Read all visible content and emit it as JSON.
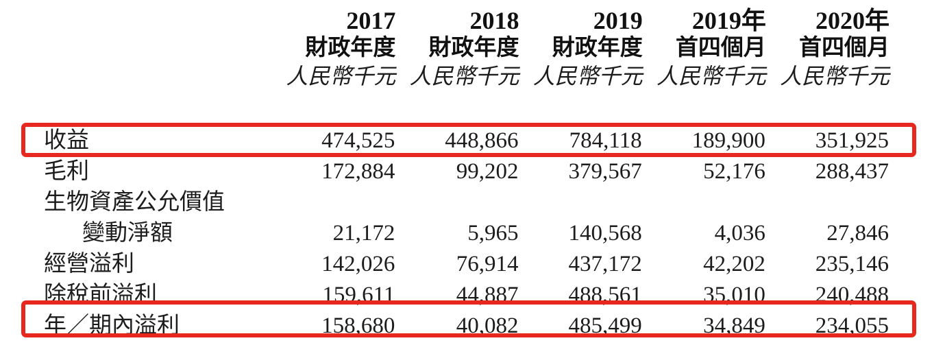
{
  "table": {
    "columns": [
      {
        "year": "2017",
        "period": "財政年度",
        "unit": "人民幣千元"
      },
      {
        "year": "2018",
        "period": "財政年度",
        "unit": "人民幣千元"
      },
      {
        "year": "2019",
        "period": "財政年度",
        "unit": "人民幣千元"
      },
      {
        "year": "2019年",
        "period": "首四個月",
        "unit": "人民幣千元"
      },
      {
        "year": "2020年",
        "period": "首四個月",
        "unit": "人民幣千元"
      }
    ],
    "rows": [
      {
        "label": "收益",
        "indent": false,
        "highlighted": true,
        "values": [
          "474,525",
          "448,866",
          "784,118",
          "189,900",
          "351,925"
        ]
      },
      {
        "label": "毛利",
        "indent": false,
        "highlighted": false,
        "values": [
          "172,884",
          "99,202",
          "379,567",
          "52,176",
          "288,437"
        ]
      },
      {
        "label": "生物資產公允價值",
        "indent": false,
        "highlighted": false,
        "values": [
          "",
          "",
          "",
          "",
          ""
        ]
      },
      {
        "label": "變動淨額",
        "indent": true,
        "highlighted": false,
        "values": [
          "21,172",
          "5,965",
          "140,568",
          "4,036",
          "27,846"
        ]
      },
      {
        "label": "經營溢利",
        "indent": false,
        "highlighted": false,
        "values": [
          "142,026",
          "76,914",
          "437,172",
          "42,202",
          "235,146"
        ]
      },
      {
        "label": "除稅前溢利",
        "indent": false,
        "highlighted": false,
        "values": [
          "159,611",
          "44,887",
          "488,561",
          "35,010",
          "240,488"
        ]
      },
      {
        "label": "年／期內溢利",
        "indent": false,
        "highlighted": true,
        "values": [
          "158,680",
          "40,082",
          "485,499",
          "34,849",
          "234,055"
        ]
      }
    ]
  },
  "highlight_color": "#e6281e"
}
